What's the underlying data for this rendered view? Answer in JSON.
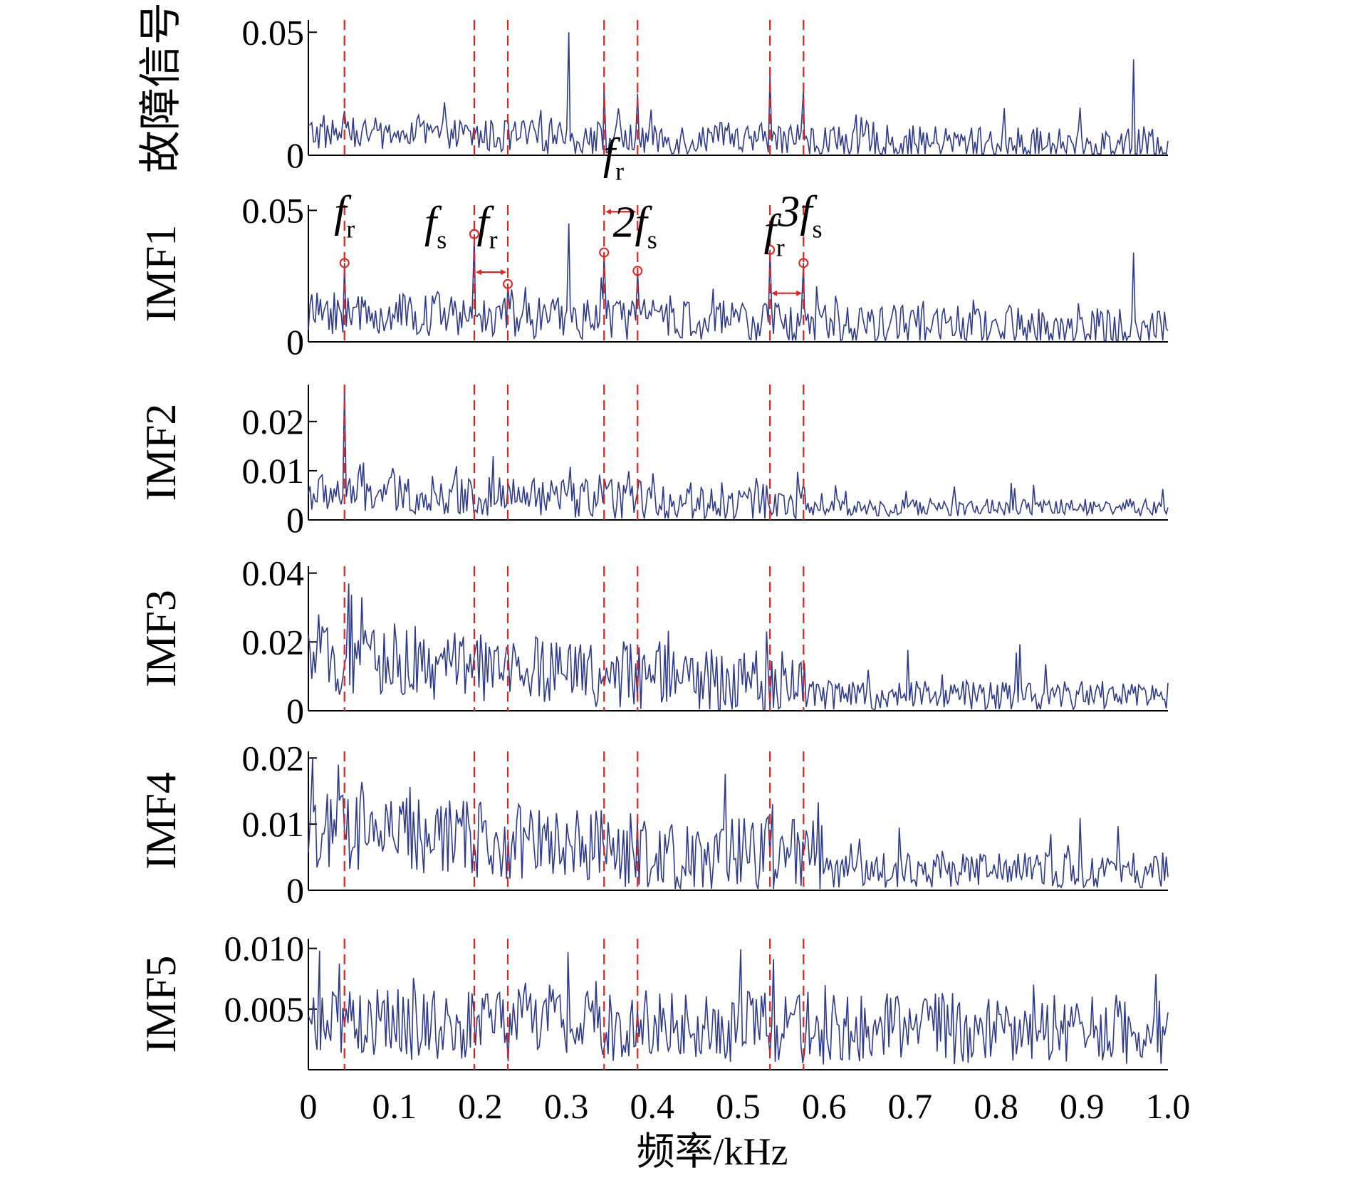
{
  "chart_data": {
    "type": "line",
    "title": "",
    "xlabel": "频率/kHz",
    "xlim": [
      0,
      1.0
    ],
    "x_ticks": [
      0,
      0.1,
      0.2,
      0.3,
      0.4,
      0.5,
      0.6,
      0.7,
      0.8,
      0.9,
      1.0
    ],
    "x_tick_labels": [
      "0",
      "0.1",
      "0.2",
      "0.3",
      "0.4",
      "0.5",
      "0.6",
      "0.7",
      "0.8",
      "0.9",
      "1.0"
    ],
    "line_color": "#2e3a8c",
    "marker_line_color": "#e8201e",
    "marker_lines_x": [
      0.042,
      0.193,
      0.232,
      0.344,
      0.383,
      0.537,
      0.576
    ],
    "series_points": 500,
    "panels": [
      {
        "name": "故障信号",
        "ylabel": "故障信号",
        "ylim": [
          0,
          0.055
        ],
        "y_ticks": [
          0,
          0.05
        ],
        "y_tick_labels": [
          "0",
          "0.05"
        ],
        "envelope": {
          "base": 0.009,
          "amp": 0.007,
          "decay_to": 0.0,
          "knee": 1.0
        },
        "spikes": [
          {
            "x": 0.042,
            "y": 0.018
          },
          {
            "x": 0.303,
            "y": 0.05
          },
          {
            "x": 0.344,
            "y": 0.028
          },
          {
            "x": 0.383,
            "y": 0.025
          },
          {
            "x": 0.537,
            "y": 0.033
          },
          {
            "x": 0.576,
            "y": 0.027
          },
          {
            "x": 0.96,
            "y": 0.039
          }
        ],
        "markers": []
      },
      {
        "name": "IMF1",
        "ylabel": "IMF1",
        "ylim": [
          0,
          0.052
        ],
        "y_ticks": [
          0,
          0.05
        ],
        "y_tick_labels": [
          "0",
          "0.05"
        ],
        "envelope": {
          "base": 0.011,
          "amp": 0.008,
          "decay_to": 0.0,
          "knee": 1.0
        },
        "spikes": [
          {
            "x": 0.042,
            "y": 0.03
          },
          {
            "x": 0.193,
            "y": 0.041
          },
          {
            "x": 0.232,
            "y": 0.022
          },
          {
            "x": 0.303,
            "y": 0.045
          },
          {
            "x": 0.344,
            "y": 0.034
          },
          {
            "x": 0.383,
            "y": 0.027
          },
          {
            "x": 0.537,
            "y": 0.035
          },
          {
            "x": 0.576,
            "y": 0.03
          },
          {
            "x": 0.96,
            "y": 0.034
          }
        ],
        "markers": [
          {
            "x": 0.042,
            "y": 0.03
          },
          {
            "x": 0.193,
            "y": 0.041
          },
          {
            "x": 0.232,
            "y": 0.022
          },
          {
            "x": 0.344,
            "y": 0.034
          },
          {
            "x": 0.383,
            "y": 0.027
          },
          {
            "x": 0.537,
            "y": 0.035
          },
          {
            "x": 0.576,
            "y": 0.03
          }
        ]
      },
      {
        "name": "IMF2",
        "ylabel": "IMF2",
        "ylim": [
          0,
          0.0275
        ],
        "y_ticks": [
          0,
          0.01,
          0.02
        ],
        "y_tick_labels": [
          "0",
          "0.01",
          "0.02"
        ],
        "envelope": {
          "base": 0.0055,
          "amp": 0.004,
          "decay_to": 0.002,
          "knee": 0.58
        },
        "spikes": [
          {
            "x": 0.042,
            "y": 0.027
          },
          {
            "x": 0.215,
            "y": 0.013
          }
        ],
        "markers": []
      },
      {
        "name": "IMF3",
        "ylabel": "IMF3",
        "ylim": [
          0,
          0.042
        ],
        "y_ticks": [
          0,
          0.02,
          0.04
        ],
        "y_tick_labels": [
          "0",
          "0.02",
          "0.04"
        ],
        "envelope": {
          "base": 0.015,
          "amp": 0.01,
          "decay_to": 0.0025,
          "knee": 0.58
        },
        "spikes": [
          {
            "x": 0.047,
            "y": 0.037
          },
          {
            "x": 0.012,
            "y": 0.028
          }
        ],
        "markers": []
      },
      {
        "name": "IMF4",
        "ylabel": "IMF4",
        "ylim": [
          0,
          0.021
        ],
        "y_ticks": [
          0,
          0.01,
          0.02
        ],
        "y_tick_labels": [
          "0",
          "0.01",
          "0.02"
        ],
        "envelope": {
          "base": 0.009,
          "amp": 0.006,
          "decay_to": 0.002,
          "knee": 0.6
        },
        "spikes": [
          {
            "x": 0.005,
            "y": 0.02
          },
          {
            "x": 0.035,
            "y": 0.019
          },
          {
            "x": 0.54,
            "y": 0.013
          }
        ],
        "markers": []
      },
      {
        "name": "IMF5",
        "ylabel": "IMF5",
        "ylim": [
          0,
          0.0108
        ],
        "y_ticks": [
          0.005,
          0.01
        ],
        "y_tick_labels": [
          "0.005",
          "0.010"
        ],
        "envelope": {
          "base": 0.0038,
          "amp": 0.003,
          "decay_to": 0.0028,
          "knee": 1.0
        },
        "spikes": [
          {
            "x": 0.013,
            "y": 0.0098
          },
          {
            "x": 0.302,
            "y": 0.0097
          }
        ],
        "markers": []
      }
    ],
    "annotations": [
      {
        "panel": 1,
        "x": 0.042,
        "y": 0.044,
        "main": "f",
        "sub": "r",
        "italic": true
      },
      {
        "panel": 1,
        "x": 0.148,
        "y": 0.04,
        "main": "f",
        "sub": "s",
        "italic": true
      },
      {
        "panel": 1,
        "x": 0.208,
        "y": 0.04,
        "main": "f",
        "sub": "r",
        "italic": true
      },
      {
        "panel": 1,
        "x": 0.355,
        "y": 0.066,
        "main": "f",
        "sub": "r",
        "italic": true
      },
      {
        "panel": 1,
        "x": 0.38,
        "y": 0.04,
        "main": "2f",
        "sub": "s",
        "italic": true
      },
      {
        "panel": 1,
        "x": 0.542,
        "y": 0.037,
        "main": "f",
        "sub": "r",
        "italic": true
      },
      {
        "panel": 1,
        "x": 0.572,
        "y": 0.044,
        "main": "3f",
        "sub": "s",
        "italic": true
      }
    ],
    "arrows": [
      {
        "panel": 1,
        "x1": 0.193,
        "x2": 0.232,
        "y": 0.0265
      },
      {
        "panel": 1,
        "x1": 0.344,
        "x2": 0.383,
        "y": 0.0495
      },
      {
        "panel": 1,
        "x1": 0.537,
        "x2": 0.576,
        "y": 0.0185
      }
    ]
  }
}
